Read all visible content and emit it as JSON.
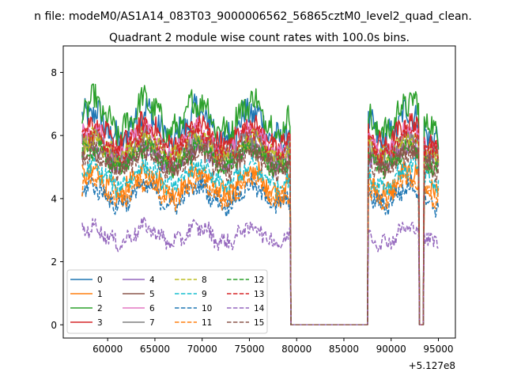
{
  "chart_data": {
    "type": "line",
    "suptitle": "n file: modeM0/AS1A14_083T03_9000006562_56865cztM0_level2_quad_clean.",
    "title": "Quadrant 2 module wise count rates with 100.0s bins.",
    "xlabel": "",
    "ylabel": "",
    "x_offset_label": "+5.127e8",
    "xlim": [
      55300,
      96800
    ],
    "ylim": [
      -0.42,
      8.84
    ],
    "x_ticks": [
      60000,
      65000,
      70000,
      75000,
      80000,
      85000,
      90000,
      95000
    ],
    "x_tick_labels": [
      "60000",
      "65000",
      "70000",
      "75000",
      "80000",
      "85000",
      "90000",
      "95000"
    ],
    "y_ticks": [
      0,
      2,
      4,
      6,
      8
    ],
    "y_tick_labels": [
      "0",
      "2",
      "4",
      "6",
      "8"
    ],
    "bin_seconds": 100,
    "segments": [
      [
        57300,
        79300
      ],
      [
        87600,
        92900
      ],
      [
        93500,
        95000
      ]
    ],
    "gaps_value": 0,
    "series": [
      {
        "name": "0",
        "color": "#1f77b4",
        "dash": "solid",
        "mean": 6.3,
        "amp": 0.45,
        "noise": 0.45
      },
      {
        "name": "1",
        "color": "#ff7f0e",
        "dash": "solid",
        "mean": 4.5,
        "amp": 0.35,
        "noise": 0.35
      },
      {
        "name": "2",
        "color": "#2ca02c",
        "dash": "solid",
        "mean": 6.6,
        "amp": 0.5,
        "noise": 0.4
      },
      {
        "name": "3",
        "color": "#d62728",
        "dash": "solid",
        "mean": 6.0,
        "amp": 0.35,
        "noise": 0.35
      },
      {
        "name": "4",
        "color": "#9467bd",
        "dash": "solid",
        "mean": 5.4,
        "amp": 0.3,
        "noise": 0.3
      },
      {
        "name": "5",
        "color": "#8c564b",
        "dash": "solid",
        "mean": 5.3,
        "amp": 0.3,
        "noise": 0.3
      },
      {
        "name": "6",
        "color": "#e377c2",
        "dash": "solid",
        "mean": 5.8,
        "amp": 0.35,
        "noise": 0.3
      },
      {
        "name": "7",
        "color": "#7f7f7f",
        "dash": "solid",
        "mean": 5.6,
        "amp": 0.3,
        "noise": 0.3
      },
      {
        "name": "8",
        "color": "#bcbd22",
        "dash": "dashed",
        "mean": 5.6,
        "amp": 0.3,
        "noise": 0.3
      },
      {
        "name": "9",
        "color": "#17becf",
        "dash": "dashed",
        "mean": 4.7,
        "amp": 0.3,
        "noise": 0.3
      },
      {
        "name": "10",
        "color": "#1f77b4",
        "dash": "dashed",
        "mean": 4.1,
        "amp": 0.3,
        "noise": 0.3
      },
      {
        "name": "11",
        "color": "#ff7f0e",
        "dash": "dashed",
        "mean": 4.3,
        "amp": 0.3,
        "noise": 0.3
      },
      {
        "name": "12",
        "color": "#2ca02c",
        "dash": "dashed",
        "mean": 5.3,
        "amp": 0.3,
        "noise": 0.3
      },
      {
        "name": "13",
        "color": "#d62728",
        "dash": "dashed",
        "mean": 5.8,
        "amp": 0.35,
        "noise": 0.3
      },
      {
        "name": "14",
        "color": "#9467bd",
        "dash": "dashed",
        "mean": 2.85,
        "amp": 0.25,
        "noise": 0.25
      },
      {
        "name": "15",
        "color": "#8c564b",
        "dash": "dashed",
        "mean": 5.2,
        "amp": 0.3,
        "noise": 0.3
      }
    ],
    "legend_position": "lower-left",
    "legend_columns": 4
  }
}
